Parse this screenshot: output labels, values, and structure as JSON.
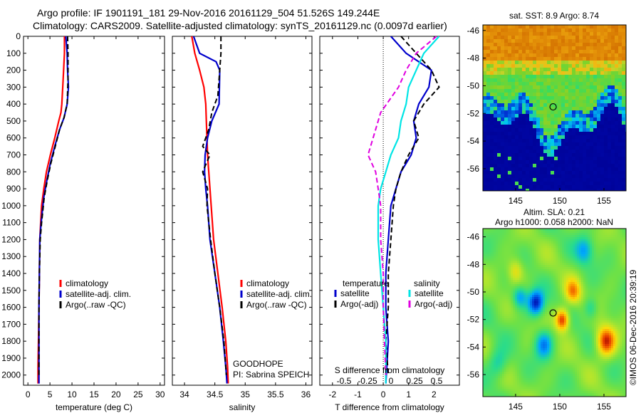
{
  "header": {
    "line1": "Argo profile: IF 1901191_181 29-Nov-2016 20161129_504 51.526S 149.244E",
    "line2": "Climatology: CARS2009. Satellite-adjusted climatology: synTS_20161129.nc (0.0097d earlier)"
  },
  "credit": "©IMOS 06-Dec-2016 20:39:19",
  "colors": {
    "climatology": "#ff0000",
    "satellite": "#0000cc",
    "argo": "#000000",
    "s_satellite": "#00e5e5",
    "s_argo": "#e000e0"
  },
  "chart_data": [
    {
      "type": "line",
      "id": "temperature",
      "xlabel": "temperature (deg C)",
      "xlim": [
        -1,
        31
      ],
      "xticks": [
        0,
        5,
        10,
        15,
        20,
        25,
        30
      ],
      "ylim": [
        2060,
        0
      ],
      "yticks": [
        0,
        100,
        200,
        300,
        400,
        500,
        600,
        700,
        800,
        900,
        1000,
        1100,
        1200,
        1300,
        1400,
        1500,
        1600,
        1700,
        1800,
        1900,
        2000
      ],
      "legend": [
        "climatology",
        "satellite-adj. clim.",
        "Argo(..raw -QC)"
      ],
      "legend_loc": "lower-center",
      "series": [
        {
          "name": "climatology",
          "color": "red",
          "x": [
            8.3,
            8.3,
            8.1,
            7.9,
            7.7,
            7.5,
            7.0,
            6.1,
            5.1,
            4.2,
            3.6,
            3.1,
            2.9,
            2.7,
            2.6,
            2.5,
            2.4,
            2.3,
            2.3
          ],
          "y": [
            0,
            100,
            200,
            300,
            400,
            450,
            500,
            600,
            700,
            800,
            900,
            1000,
            1100,
            1200,
            1400,
            1600,
            1800,
            1950,
            2050
          ]
        },
        {
          "name": "satellite-adj. clim.",
          "color": "blue",
          "x": [
            8.6,
            8.9,
            9.0,
            9.2,
            8.9,
            8.2,
            7.2,
            6.1,
            5.1,
            4.3,
            3.6,
            3.0,
            2.7,
            2.6,
            2.5,
            2.5,
            2.5
          ],
          "y": [
            0,
            100,
            200,
            300,
            400,
            480,
            550,
            650,
            750,
            850,
            950,
            1100,
            1200,
            1400,
            1600,
            1800,
            2050
          ]
        },
        {
          "name": "Argo(..raw -QC)",
          "color": "black",
          "x": [
            9.0,
            9.1,
            9.1,
            8.9,
            8.2,
            7.2,
            6.2,
            5.2,
            4.4,
            3.7,
            3.1,
            2.8,
            2.6,
            2.5,
            2.5
          ],
          "y": [
            0,
            100,
            250,
            400,
            480,
            550,
            650,
            750,
            850,
            950,
            1100,
            1200,
            1400,
            1600,
            2000
          ]
        }
      ]
    },
    {
      "type": "line",
      "id": "salinity",
      "xlabel": "salinity",
      "xlim": [
        33.8,
        36.1
      ],
      "xticks": [
        34,
        34.5,
        35,
        35.5,
        36
      ],
      "ylim": [
        2060,
        0
      ],
      "legend": [
        "climatology",
        "satellite-adj. clim.",
        "Argo(..raw -QC)"
      ],
      "legend_loc": "lower-center",
      "annotation": [
        "GOODHOPE",
        "PI: Sabrina SPEICH"
      ],
      "series": [
        {
          "name": "climatology",
          "color": "red",
          "x": [
            34.12,
            34.17,
            34.25,
            34.32,
            34.35,
            34.36,
            34.37,
            34.38,
            34.4,
            34.42,
            34.44,
            34.48,
            34.55,
            34.62,
            34.68,
            34.71,
            34.72
          ],
          "y": [
            0,
            100,
            200,
            300,
            400,
            500,
            600,
            700,
            800,
            900,
            1000,
            1200,
            1400,
            1600,
            1800,
            1950,
            2050
          ]
        },
        {
          "name": "satellite-adj. clim.",
          "color": "blue",
          "x": [
            34.15,
            34.25,
            34.52,
            34.58,
            34.57,
            34.45,
            34.38,
            34.34,
            34.33,
            34.35,
            34.38,
            34.42,
            34.5,
            34.58,
            34.64,
            34.68,
            34.7
          ],
          "y": [
            0,
            100,
            150,
            200,
            400,
            500,
            600,
            700,
            800,
            900,
            1000,
            1200,
            1400,
            1600,
            1800,
            1950,
            2050
          ]
        },
        {
          "name": "Argo(..raw -QC)",
          "color": "black",
          "x": [
            34.6,
            34.6,
            34.58,
            34.55,
            34.45,
            34.4,
            34.3,
            34.42,
            34.3,
            34.38,
            34.37,
            34.43,
            34.5,
            34.58,
            34.65,
            34.69
          ],
          "y": [
            0,
            100,
            200,
            350,
            450,
            550,
            650,
            700,
            800,
            900,
            1000,
            1200,
            1400,
            1600,
            1800,
            2000
          ]
        }
      ]
    },
    {
      "type": "line",
      "id": "difference",
      "xlabel": "T difference from climatology",
      "xlabel_top": "S difference from climatology",
      "xlim": [
        -2.5,
        3.0
      ],
      "xticks": [
        -2,
        -1,
        0,
        1,
        2
      ],
      "s_ticks": [
        "-0.5",
        "-0.25",
        "0",
        "0.25",
        "0.5"
      ],
      "ylim": [
        2060,
        0
      ],
      "zero_line": "dotted",
      "legend_left_title": "temperature",
      "legend_right_title": "salinity",
      "legend": [
        "satellite",
        "Argo(-adj)",
        "satellite",
        "Argo(-adj)"
      ],
      "legend_loc": "lower-center",
      "series": [
        {
          "name": "satellite",
          "group": "temperature",
          "color": "blue",
          "x": [
            0.3,
            0.9,
            1.9,
            1.8,
            1.4,
            1.2,
            1.3,
            1.1,
            0.7,
            0.5,
            0.3,
            0.2,
            0.1,
            0.1,
            0.2,
            0.1
          ],
          "y": [
            0,
            100,
            200,
            300,
            400,
            500,
            600,
            700,
            800,
            900,
            1000,
            1200,
            1400,
            1600,
            1800,
            2050
          ]
        },
        {
          "name": "Argo(-adj)",
          "group": "temperature",
          "color": "black",
          "x": [
            0.7,
            1.3,
            1.9,
            2.2,
            1.6,
            1.2,
            1.4,
            1.0,
            0.7,
            0.5,
            0.4,
            0.3,
            0.2,
            0.2,
            0.1,
            0.2
          ],
          "y": [
            0,
            100,
            200,
            300,
            400,
            500,
            600,
            700,
            800,
            900,
            1000,
            1200,
            1400,
            1600,
            1800,
            2000
          ]
        },
        {
          "name": "satellite",
          "group": "salinity",
          "color": "cyan",
          "x": [
            2.2,
            1.6,
            1.3,
            1.0,
            0.9,
            0.7,
            0.6,
            0.3,
            0.1,
            -0.1,
            -0.2,
            -0.2,
            -0.1,
            0.0,
            0.1,
            0.1
          ],
          "y": [
            0,
            100,
            200,
            300,
            400,
            500,
            600,
            700,
            800,
            900,
            1000,
            1200,
            1400,
            1600,
            1800,
            2050
          ]
        },
        {
          "name": "Argo(-adj)",
          "group": "salinity",
          "color": "magenta",
          "x": [
            2.1,
            1.3,
            0.9,
            0.6,
            -0.1,
            -0.3,
            -0.5,
            -0.6,
            -0.3,
            -0.2,
            -0.1,
            -0.1,
            0.0,
            0.0,
            0.1
          ],
          "y": [
            0,
            100,
            200,
            300,
            450,
            550,
            650,
            700,
            800,
            900,
            1000,
            1200,
            1400,
            1600,
            2000
          ]
        }
      ]
    },
    {
      "type": "heatmap",
      "id": "sst_map",
      "title": "sat. SST: 8.9 Argo: 8.74",
      "xlim": [
        141.3,
        157.5
      ],
      "ylim": [
        -57.6,
        -45.6
      ],
      "xticks": [
        145,
        150,
        155
      ],
      "yticks": [
        -46,
        -48,
        -50,
        -52,
        -54,
        -56
      ],
      "marker": {
        "lon": 149.244,
        "lat": -51.526
      }
    },
    {
      "type": "heatmap",
      "id": "sla_map",
      "title": "Altim. SLA: 0.21",
      "subtitle": "Argo h1000: 0.058 h2000: NaN",
      "xlim": [
        141.3,
        157.5
      ],
      "ylim": [
        -57.6,
        -45.4
      ],
      "xticks": [
        145,
        150,
        155
      ],
      "yticks": [
        -46,
        -48,
        -50,
        -52,
        -54,
        -56
      ],
      "marker": {
        "lon": 149.244,
        "lat": -51.526
      }
    }
  ]
}
